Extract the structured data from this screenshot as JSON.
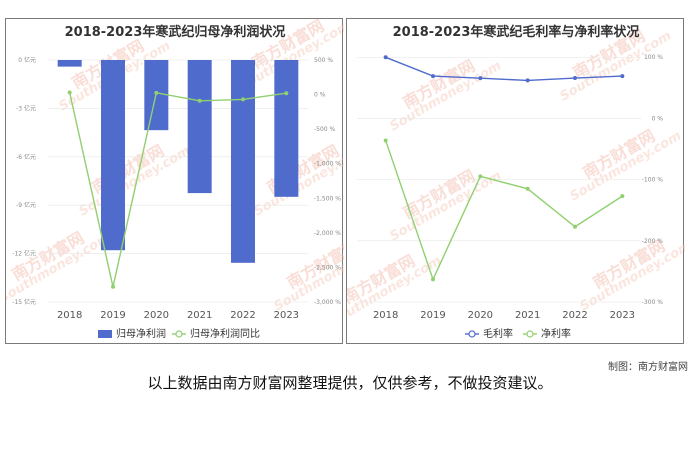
{
  "chart_data": [
    {
      "type": "bar",
      "title": "2018-2023年寒武纪归母净利润状况",
      "categories": [
        "2018",
        "2019",
        "2020",
        "2021",
        "2022",
        "2023"
      ],
      "y_left_ticks": [
        "0 亿元",
        "-3 亿元",
        "-6 亿元",
        "-9 亿元",
        "-12 亿元",
        "-15 亿元"
      ],
      "y_right_ticks": [
        "500 %",
        "0 %",
        "-500 %",
        "-1,000 %",
        "-1,500 %",
        "-2,000 %",
        "-2,500 %",
        "-3,000 %"
      ],
      "ylim_left": [
        -15,
        0
      ],
      "ylim_right": [
        -3000,
        500
      ],
      "series": [
        {
          "name": "归母净利润",
          "kind": "bar",
          "axis": "left",
          "color": "#4f6bcc",
          "values": [
            -0.41,
            -11.79,
            -4.35,
            -8.25,
            -12.57,
            -8.48
          ]
        },
        {
          "name": "归母净利润同比",
          "kind": "line",
          "axis": "right",
          "color": "#90d070",
          "values": [
            30,
            -2780,
            25,
            -90,
            -70,
            20
          ]
        }
      ],
      "legend_position": "bottom"
    },
    {
      "type": "line",
      "title": "2018-2023年寒武纪毛利率与净利率状况",
      "categories": [
        "2018",
        "2019",
        "2020",
        "2021",
        "2022",
        "2023"
      ],
      "y_right_ticks": [
        "100 %",
        "0 %",
        "-100 %",
        "-200 %",
        "-300 %"
      ],
      "ylim_right": [
        -300,
        120
      ],
      "series": [
        {
          "name": "毛利率",
          "color": "#4f6bcc",
          "values": [
            99.9,
            69.2,
            65.8,
            62.1,
            66.0,
            69.2
          ]
        },
        {
          "name": "净利率",
          "color": "#90d070",
          "values": [
            -36.0,
            -263.0,
            -94.6,
            -115.0,
            -177.0,
            -127.0
          ]
        }
      ],
      "legend_position": "bottom"
    }
  ],
  "watermark": {
    "cn": "南方财富网",
    "en": "Southmoney.com"
  },
  "credit": "制图：南方财富网",
  "disclaimer": "以上数据由南方财富网整理提供，仅供参考，不做投资建议。"
}
